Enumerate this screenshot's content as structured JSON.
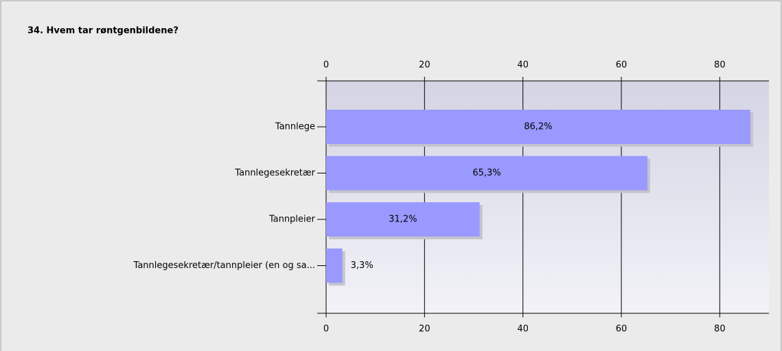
{
  "chart_data": {
    "type": "hbar",
    "title": "34. Hvem tar røntgenbildene?",
    "categories": [
      "Tannlege",
      "Tannlegesekretær",
      "Tannpleier",
      "Tannlegesekretær/tannpleier (en og sa..."
    ],
    "values": [
      86.2,
      65.3,
      31.2,
      3.3
    ],
    "value_labels": [
      "86,2%",
      "65,3%",
      "31,2%",
      "3,3%"
    ],
    "color": "#9999ff",
    "xlim": [
      0,
      90
    ],
    "xticks": [
      0,
      20,
      40,
      60,
      80
    ],
    "grid": true
  }
}
